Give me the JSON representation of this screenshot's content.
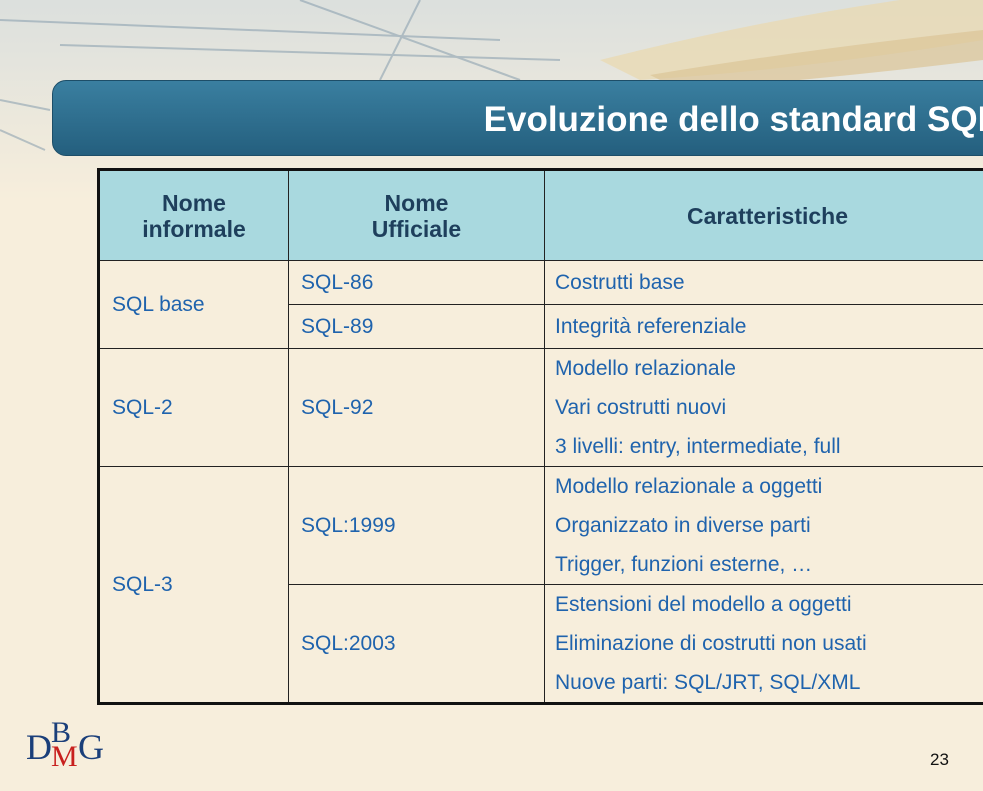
{
  "header": {
    "title": "Evoluzione dello standard SQL"
  },
  "table": {
    "headers": [
      [
        "Nome",
        "informale"
      ],
      [
        "Nome",
        "Ufficiale"
      ],
      [
        "Caratteristiche"
      ]
    ],
    "groups": [
      {
        "informal": "SQL base",
        "versions": [
          {
            "name": "SQL-86",
            "features": [
              "Costrutti base"
            ]
          },
          {
            "name": "SQL-89",
            "features": [
              "Integrità referenziale"
            ]
          }
        ]
      },
      {
        "informal": "SQL-2",
        "versions": [
          {
            "name": "SQL-92",
            "features": [
              "Modello relazionale",
              "Vari costrutti nuovi",
              "3 livelli: entry, intermediate, full"
            ]
          }
        ]
      },
      {
        "informal": "SQL-3",
        "versions": [
          {
            "name": "SQL:1999",
            "features": [
              "Modello relazionale a oggetti",
              "Organizzato in diverse parti",
              "Trigger, funzioni esterne, …"
            ]
          },
          {
            "name": "SQL:2003",
            "features": [
              "Estensioni del modello a oggetti",
              "Eliminazione di costrutti non usati",
              "Nuove parti: SQL/JRT, SQL/XML"
            ]
          }
        ]
      }
    ]
  },
  "footer": {
    "logo": [
      "D",
      "B",
      "M",
      "G"
    ],
    "page_number": "23"
  }
}
